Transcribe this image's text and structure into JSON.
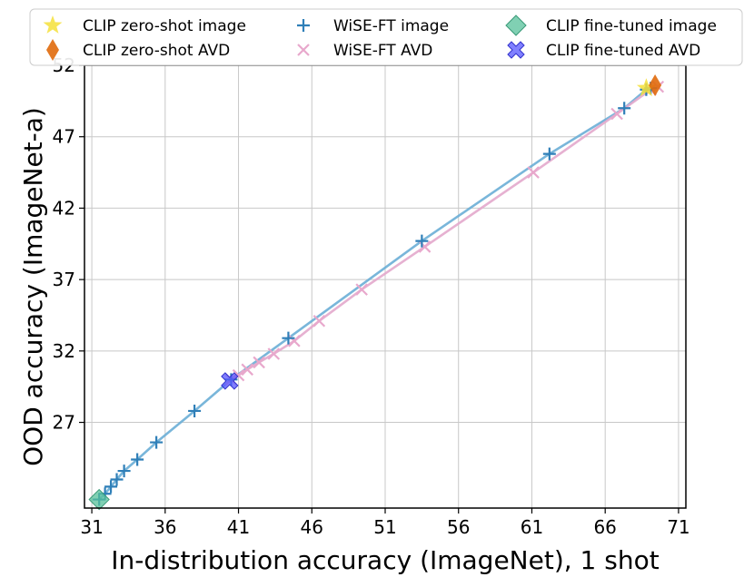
{
  "chart_data": {
    "type": "scatter",
    "xlabel": "In-distribution accuracy (ImageNet), 1 shot",
    "ylabel": "OOD accuracy (ImageNet-a)",
    "xlim": [
      30.5,
      71.5
    ],
    "ylim": [
      21.0,
      52.0
    ],
    "xticks": [
      31,
      36,
      41,
      46,
      51,
      56,
      61,
      66,
      71
    ],
    "yticks": [
      27,
      32,
      37,
      42,
      47,
      52
    ],
    "grid": true,
    "legend_position": "top",
    "series": [
      {
        "name": "CLIP zero-shot image",
        "marker": "star",
        "color": "#f5e13a",
        "points": [
          [
            68.8,
            50.4
          ]
        ]
      },
      {
        "name": "CLIP zero-shot AVD",
        "marker": "thin_diamond",
        "color": "#e06a0c",
        "points": [
          [
            69.4,
            50.6
          ]
        ]
      },
      {
        "name": "WiSE-FT image",
        "marker": "plus",
        "color": "#2f7fb8",
        "points": [
          [
            31.5,
            21.6
          ],
          [
            31.9,
            22.0
          ],
          [
            32.3,
            22.5
          ],
          [
            32.7,
            23.0
          ],
          [
            33.2,
            23.6
          ],
          [
            34.1,
            24.4
          ],
          [
            35.4,
            25.6
          ],
          [
            38.0,
            27.8
          ],
          [
            40.5,
            30.0
          ],
          [
            44.4,
            32.9
          ],
          [
            53.5,
            39.7
          ],
          [
            62.2,
            45.8
          ],
          [
            67.3,
            49.0
          ],
          [
            68.8,
            50.3
          ],
          [
            69.1,
            50.4
          ]
        ]
      },
      {
        "name": "WiSE-FT AVD",
        "marker": "x",
        "color": "#e8a8cc",
        "points": [
          [
            40.5,
            30.0
          ],
          [
            41.0,
            30.3
          ],
          [
            41.6,
            30.7
          ],
          [
            42.4,
            31.2
          ],
          [
            43.4,
            31.8
          ],
          [
            44.8,
            32.7
          ],
          [
            46.5,
            34.1
          ],
          [
            49.4,
            36.3
          ],
          [
            53.7,
            39.3
          ],
          [
            61.1,
            44.5
          ],
          [
            66.8,
            48.6
          ],
          [
            69.1,
            50.3
          ],
          [
            69.6,
            50.5
          ]
        ]
      },
      {
        "name": "CLIP fine-tuned image",
        "marker": "diamond",
        "color": "#55c09a",
        "points": [
          [
            31.5,
            21.6
          ]
        ]
      },
      {
        "name": "CLIP fine-tuned AVD",
        "marker": "X",
        "color": "#5555ff",
        "points": [
          [
            40.4,
            29.9
          ]
        ]
      }
    ]
  }
}
